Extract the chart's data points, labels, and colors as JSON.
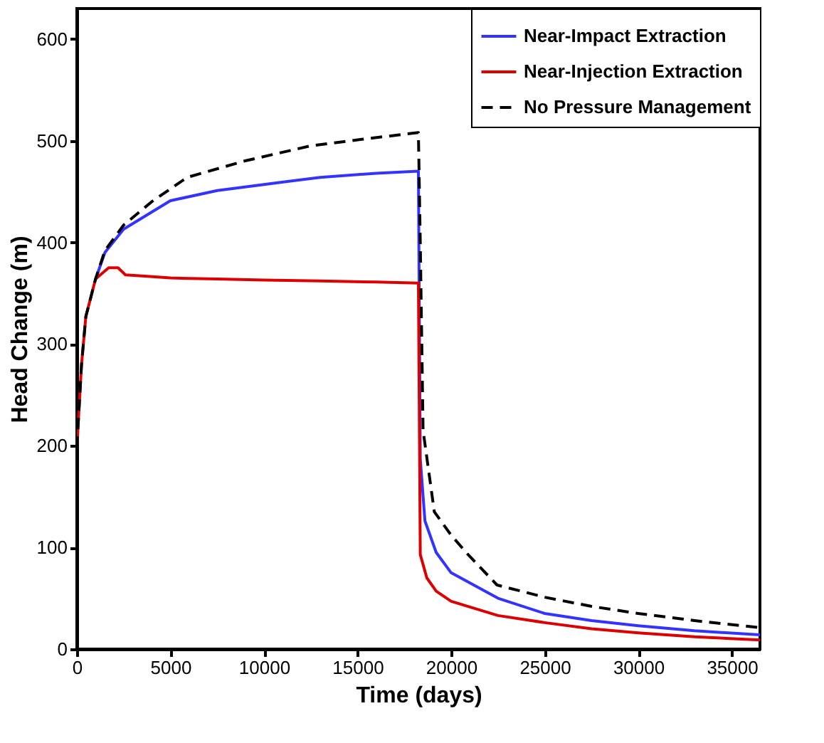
{
  "chart_data": {
    "type": "line",
    "xlabel": "Time  (days)",
    "ylabel": "Head Change  (m)",
    "xlim": [
      0,
      36500
    ],
    "ylim": [
      0,
      630
    ],
    "xticks": [
      0,
      5000,
      10000,
      15000,
      20000,
      25000,
      30000,
      35000
    ],
    "yticks": [
      0,
      100,
      200,
      300,
      400,
      500,
      600
    ],
    "grid": false,
    "legend": "top right",
    "marker": "none",
    "series": [
      {
        "name": "Near-Impact Extraction",
        "color": "#3333ff",
        "line_style": "solid",
        "x": [
          1000,
          1500,
          2500,
          5000,
          7500,
          10000,
          13000,
          16000,
          18250,
          18350,
          18600,
          19200,
          20000,
          22500,
          25000,
          27500,
          30000,
          33000,
          36500
        ],
        "values": [
          364,
          390,
          413,
          441,
          451,
          457,
          464,
          468,
          470,
          187,
          126,
          95,
          75,
          50,
          35,
          28,
          23,
          18,
          14
        ]
      },
      {
        "name": "Near-Injection Extraction",
        "color": "#dd0000",
        "line_style": "solid",
        "x": [
          0,
          250,
          480,
          1000,
          1700,
          2200,
          2600,
          3500,
          5000,
          7500,
          10000,
          13000,
          16000,
          18250,
          18350,
          18700,
          19200,
          20000,
          22500,
          25000,
          27500,
          30000,
          33000,
          36500
        ],
        "values": [
          198,
          280,
          327,
          364,
          375,
          375,
          368,
          367,
          365,
          364,
          363,
          362,
          361,
          360,
          93,
          70,
          57,
          47,
          33,
          26,
          20,
          16,
          12,
          9
        ]
      },
      {
        "name": "No Pressure Management",
        "color": "#000000",
        "line_style": "dashed",
        "x": [
          0,
          250,
          480,
          1000,
          1500,
          2500,
          4000,
          5900,
          8950,
          12500,
          15500,
          18250,
          18350,
          18500,
          19100,
          20000,
          20900,
          22450,
          25000,
          27500,
          30000,
          33000,
          36500
        ],
        "values": [
          198,
          280,
          327,
          364,
          392,
          417,
          440,
          464,
          480,
          495,
          502,
          508,
          400,
          215,
          135,
          112,
          93,
          63,
          51,
          42,
          35,
          28,
          21
        ]
      }
    ]
  }
}
